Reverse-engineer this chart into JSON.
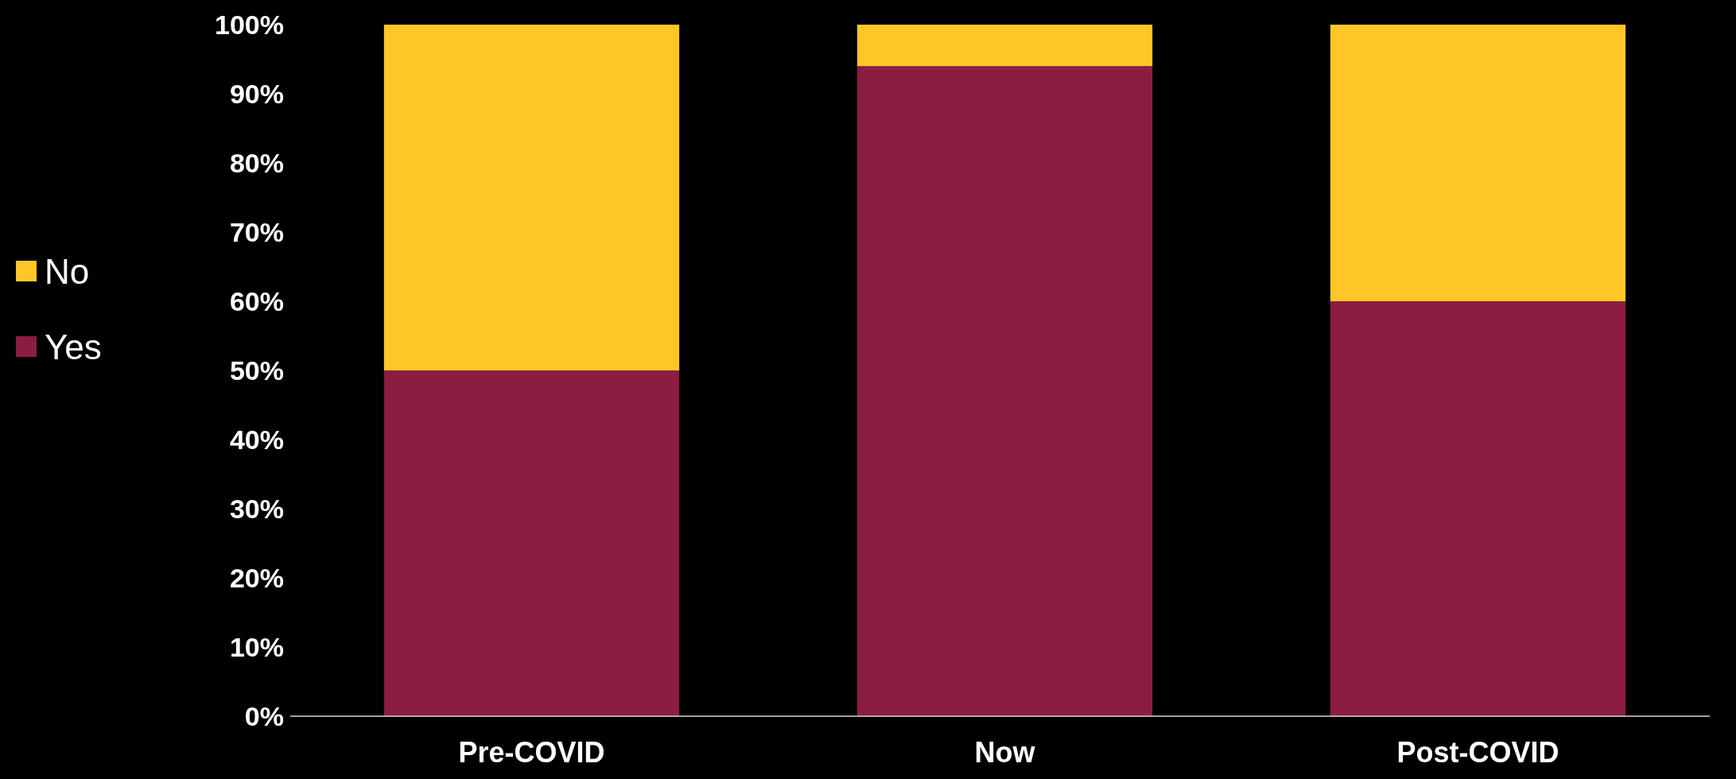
{
  "chart_data": {
    "type": "bar",
    "stacked": true,
    "categories": [
      "Pre-COVID",
      "Now",
      "Post-COVID"
    ],
    "series": [
      {
        "name": "Yes",
        "color": "#8c1d40",
        "values": [
          50,
          94,
          60
        ]
      },
      {
        "name": "No",
        "color": "#ffc627",
        "values": [
          50,
          6,
          40
        ]
      }
    ],
    "ylim": [
      0,
      100
    ],
    "yticks": [
      {
        "value": 0,
        "label": "0%"
      },
      {
        "value": 10,
        "label": "10%"
      },
      {
        "value": 20,
        "label": "20%"
      },
      {
        "value": 30,
        "label": "30%"
      },
      {
        "value": 40,
        "label": "40%"
      },
      {
        "value": 50,
        "label": "50%"
      },
      {
        "value": 60,
        "label": "60%"
      },
      {
        "value": 70,
        "label": "70%"
      },
      {
        "value": 80,
        "label": "80%"
      },
      {
        "value": 90,
        "label": "90%"
      },
      {
        "value": 100,
        "label": "100%"
      }
    ],
    "legend": "left"
  }
}
